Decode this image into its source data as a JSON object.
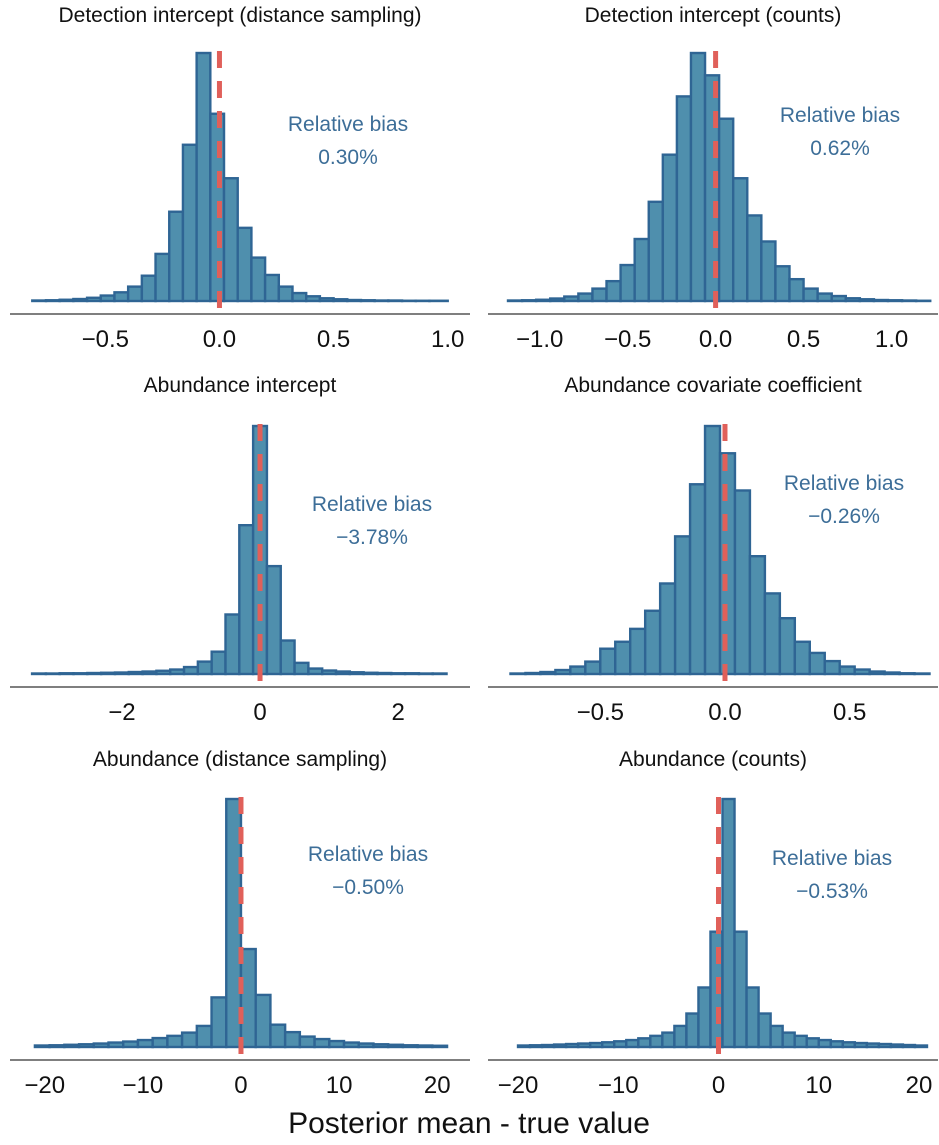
{
  "figure": {
    "xlabel": "Posterior mean - true value"
  },
  "colors": {
    "bar_fill": "#4f8fad",
    "bar_stroke": "#2f6594",
    "ref_line": "#e0605a",
    "bias_text": "#3d6e98",
    "axis": "#333333"
  },
  "chart_data": [
    {
      "type": "bar",
      "title": "Detection intercept (distance sampling)",
      "xlabel": "",
      "ylabel": "",
      "xlim": [
        -0.83,
        1.01
      ],
      "xticks": [
        -0.5,
        0.0,
        0.5,
        1.0
      ],
      "xticklabels": [
        "−0.5",
        "0.0",
        "0.5",
        "1.0"
      ],
      "ref_line": 0,
      "bin_edges": [
        -0.82,
        -0.76,
        -0.7,
        -0.64,
        -0.58,
        -0.52,
        -0.46,
        -0.4,
        -0.34,
        -0.28,
        -0.22,
        -0.16,
        -0.1,
        -0.04,
        0.02,
        0.08,
        0.14,
        0.2,
        0.26,
        0.32,
        0.38,
        0.44,
        0.5,
        0.56,
        0.62,
        0.68,
        0.74,
        0.8,
        0.86,
        0.92,
        1.0
      ],
      "counts": [
        0.002,
        0.003,
        0.005,
        0.008,
        0.013,
        0.022,
        0.035,
        0.058,
        0.102,
        0.19,
        0.36,
        0.63,
        1.0,
        0.755,
        0.495,
        0.295,
        0.175,
        0.105,
        0.058,
        0.032,
        0.019,
        0.011,
        0.007,
        0.004,
        0.003,
        0.002,
        0.002,
        0.001,
        0.001,
        0.001
      ],
      "bias_label": "Relative bias",
      "bias_value": "0.30%"
    },
    {
      "type": "bar",
      "title": "Detection intercept (counts)",
      "xlabel": "",
      "ylabel": "",
      "xlim": [
        -1.18,
        1.23
      ],
      "xticks": [
        -1.0,
        -0.5,
        0.0,
        0.5,
        1.0
      ],
      "xticklabels": [
        "−1.0",
        "−0.5",
        "0.0",
        "0.5",
        "1.0"
      ],
      "ref_line": 0,
      "bin_edges": [
        -1.18,
        -1.1,
        -1.02,
        -0.94,
        -0.86,
        -0.78,
        -0.7,
        -0.62,
        -0.54,
        -0.46,
        -0.38,
        -0.3,
        -0.22,
        -0.14,
        -0.06,
        0.02,
        0.1,
        0.18,
        0.26,
        0.34,
        0.42,
        0.5,
        0.58,
        0.66,
        0.74,
        0.82,
        0.9,
        0.98,
        1.06,
        1.14,
        1.22
      ],
      "counts": [
        0.002,
        0.003,
        0.005,
        0.01,
        0.018,
        0.03,
        0.05,
        0.08,
        0.145,
        0.25,
        0.4,
        0.59,
        0.825,
        1.0,
        0.91,
        0.735,
        0.495,
        0.345,
        0.24,
        0.14,
        0.088,
        0.05,
        0.03,
        0.02,
        0.011,
        0.007,
        0.004,
        0.003,
        0.002,
        0.001
      ],
      "bias_label": "Relative bias",
      "bias_value": "0.62%"
    },
    {
      "type": "bar",
      "title": "Abundance intercept",
      "xlabel": "",
      "ylabel": "",
      "xlim": [
        -3.33,
        2.75
      ],
      "xticks": [
        -2,
        0,
        2
      ],
      "xticklabels": [
        "−2",
        "0",
        "2"
      ],
      "ref_line": 0,
      "bin_edges": [
        -3.3,
        -3.1,
        -2.9,
        -2.7,
        -2.5,
        -2.3,
        -2.1,
        -1.9,
        -1.7,
        -1.5,
        -1.3,
        -1.1,
        -0.9,
        -0.7,
        -0.5,
        -0.3,
        -0.1,
        0.1,
        0.3,
        0.5,
        0.7,
        0.9,
        1.1,
        1.3,
        1.5,
        1.7,
        1.9,
        2.1,
        2.3,
        2.5,
        2.7
      ],
      "counts": [
        0.002,
        0.002,
        0.003,
        0.003,
        0.004,
        0.005,
        0.006,
        0.008,
        0.01,
        0.013,
        0.018,
        0.028,
        0.05,
        0.09,
        0.24,
        0.6,
        1.0,
        0.435,
        0.135,
        0.045,
        0.022,
        0.014,
        0.01,
        0.007,
        0.005,
        0.004,
        0.003,
        0.003,
        0.002,
        0.002
      ],
      "bias_label": "Relative bias",
      "bias_value": "−3.78%"
    },
    {
      "type": "bar",
      "title": "Abundance covariate coefficient",
      "xlabel": "",
      "ylabel": "",
      "xlim": [
        -0.87,
        0.83
      ],
      "xticks": [
        -0.5,
        0.0,
        0.5
      ],
      "xticklabels": [
        "−0.5",
        "0.0",
        "0.5"
      ],
      "ref_line": 0,
      "bin_edges": [
        -0.86,
        -0.8,
        -0.74,
        -0.68,
        -0.62,
        -0.56,
        -0.5,
        -0.44,
        -0.38,
        -0.32,
        -0.26,
        -0.2,
        -0.14,
        -0.08,
        -0.02,
        0.04,
        0.1,
        0.16,
        0.22,
        0.28,
        0.34,
        0.4,
        0.46,
        0.52,
        0.58,
        0.64,
        0.7,
        0.76,
        0.82
      ],
      "counts": [
        0.002,
        0.004,
        0.008,
        0.016,
        0.03,
        0.05,
        0.102,
        0.13,
        0.182,
        0.255,
        0.365,
        0.555,
        0.765,
        1.0,
        0.89,
        0.74,
        0.475,
        0.325,
        0.225,
        0.13,
        0.085,
        0.052,
        0.03,
        0.018,
        0.01,
        0.006,
        0.003,
        0.002
      ],
      "bias_label": "Relative bias",
      "bias_value": "−0.26%"
    },
    {
      "type": "bar",
      "title": "Abundance (distance sampling)",
      "xlabel": "",
      "ylabel": "",
      "xlim": [
        -21.5,
        21.3
      ],
      "xticks": [
        -20,
        -10,
        0,
        10,
        20
      ],
      "xticklabels": [
        "−20",
        "−10",
        "0",
        "10",
        "20"
      ],
      "ref_line": 0,
      "bin_edges": [
        -21,
        -19.5,
        -18,
        -16.5,
        -15,
        -13.5,
        -12,
        -10.5,
        -9,
        -7.5,
        -6,
        -4.5,
        -3,
        -1.5,
        0,
        1.5,
        3,
        4.5,
        6,
        7.5,
        9,
        10.5,
        12,
        13.5,
        15,
        16.5,
        18,
        19.5,
        21
      ],
      "counts": [
        0.006,
        0.007,
        0.009,
        0.011,
        0.014,
        0.018,
        0.022,
        0.028,
        0.036,
        0.045,
        0.058,
        0.085,
        0.2,
        1.0,
        0.395,
        0.21,
        0.09,
        0.06,
        0.042,
        0.032,
        0.024,
        0.018,
        0.014,
        0.011,
        0.009,
        0.007,
        0.006,
        0.005
      ],
      "bias_label": "Relative bias",
      "bias_value": "−0.50%"
    },
    {
      "type": "bar",
      "title": "Abundance (counts)",
      "xlabel": "",
      "ylabel": "",
      "xlim": [
        -21.0,
        21.3
      ],
      "xticks": [
        -20,
        -10,
        0,
        10,
        20
      ],
      "xticklabels": [
        "−20",
        "−10",
        "0",
        "10",
        "20"
      ],
      "ref_line": 0,
      "bin_edges": [
        -20,
        -18.8,
        -17.6,
        -16.4,
        -15.2,
        -14,
        -12.8,
        -11.6,
        -10.4,
        -9.2,
        -8,
        -6.8,
        -5.6,
        -4.4,
        -3.2,
        -2,
        -0.8,
        0.4,
        1.6,
        2.8,
        4,
        5.2,
        6.4,
        7.6,
        8.8,
        10,
        11.2,
        12.4,
        13.6,
        14.8,
        16,
        17.2,
        18.4,
        19.6,
        20.8
      ],
      "counts": [
        0.006,
        0.007,
        0.008,
        0.01,
        0.012,
        0.014,
        0.016,
        0.019,
        0.023,
        0.028,
        0.035,
        0.045,
        0.058,
        0.085,
        0.135,
        0.24,
        0.465,
        1.0,
        0.465,
        0.24,
        0.135,
        0.085,
        0.058,
        0.045,
        0.035,
        0.028,
        0.023,
        0.019,
        0.016,
        0.014,
        0.012,
        0.01,
        0.008,
        0.006
      ],
      "bias_label": "Relative bias",
      "bias_value": "−0.53%"
    }
  ]
}
